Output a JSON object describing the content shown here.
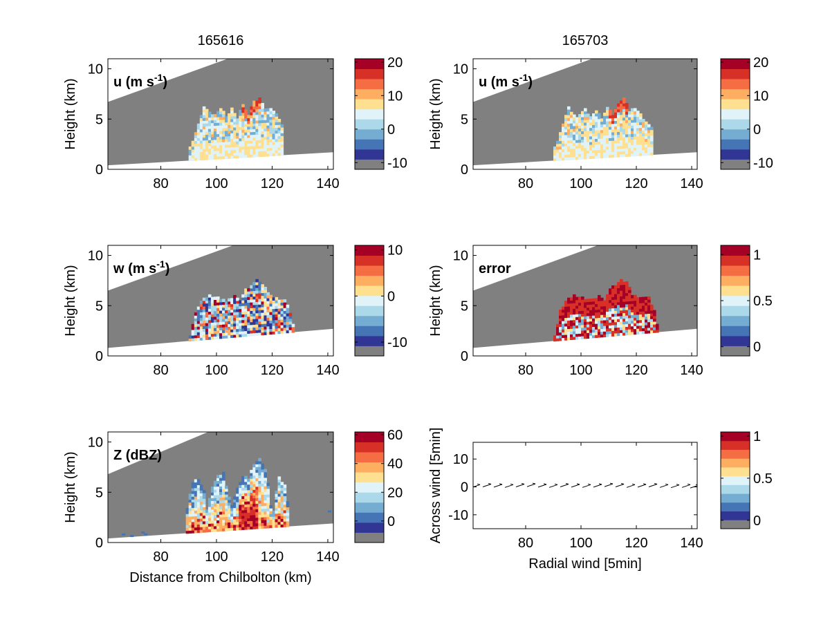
{
  "figure": {
    "col_titles": [
      "165616",
      "165703"
    ]
  },
  "palette": {
    "gray": "#808080",
    "colorbar": [
      "#808080",
      "#313695",
      "#4575b4",
      "#74add1",
      "#abd9e9",
      "#e0f3f8",
      "#fee090",
      "#fdae61",
      "#f46d43",
      "#d73027",
      "#a50026"
    ]
  },
  "chart_data": [
    {
      "type": "heatmap",
      "panel": "u",
      "title": "165616",
      "inlabel": {
        "main": "u (m s",
        "sup": "-1",
        "close": ")"
      },
      "xlabel": "",
      "ylabel": "Height (km)",
      "xlim": [
        61,
        142
      ],
      "ylim": [
        0,
        11
      ],
      "xticks": [
        80,
        100,
        120,
        140
      ],
      "yticks": [
        0,
        5,
        10
      ],
      "gray_top": [
        [
          61,
          6.7
        ],
        [
          104,
          11
        ]
      ],
      "gray_bottom": [
        [
          61,
          0.4
        ],
        [
          142,
          1.7
        ]
      ],
      "echo_top": [
        [
          90,
          2.0
        ],
        [
          93,
          4.5
        ],
        [
          95,
          6.1
        ],
        [
          98,
          5.2
        ],
        [
          101,
          6.0
        ],
        [
          103,
          5.1
        ],
        [
          105,
          5.9
        ],
        [
          107,
          5.0
        ],
        [
          109,
          6.3
        ],
        [
          111,
          5.4
        ],
        [
          113,
          6.6
        ],
        [
          115,
          7.1
        ],
        [
          117,
          5.8
        ],
        [
          119,
          6.0
        ],
        [
          121,
          5.3
        ],
        [
          123,
          4.2
        ],
        [
          124,
          2.1
        ]
      ],
      "colorbar": {
        "ticks": [
          20,
          10,
          0,
          -10
        ],
        "range": [
          -12,
          21
        ]
      }
    },
    {
      "type": "heatmap",
      "panel": "w",
      "title": "",
      "inlabel": {
        "main": "w (m s",
        "sup": "-1",
        "close": ")"
      },
      "xlabel": "",
      "ylabel": "Height (km)",
      "xlim": [
        61,
        142
      ],
      "ylim": [
        0,
        11
      ],
      "xticks": [
        80,
        100,
        120,
        140
      ],
      "yticks": [
        0,
        5,
        10
      ],
      "gray_top": [
        [
          61,
          6.5
        ],
        [
          106,
          11
        ]
      ],
      "gray_bottom": [
        [
          61,
          0.8
        ],
        [
          142,
          2.7
        ]
      ],
      "echo_top": [
        [
          90,
          1.8
        ],
        [
          92,
          4.3
        ],
        [
          94,
          5.4
        ],
        [
          97,
          5.9
        ],
        [
          100,
          5.7
        ],
        [
          103,
          5.4
        ],
        [
          106,
          5.8
        ],
        [
          108,
          5.4
        ],
        [
          110,
          6.5
        ],
        [
          112,
          6.9
        ],
        [
          114,
          7.4
        ],
        [
          116,
          7.1
        ],
        [
          118,
          6.1
        ],
        [
          120,
          5.8
        ],
        [
          122,
          5.5
        ],
        [
          124,
          5.6
        ],
        [
          126,
          4.2
        ],
        [
          127,
          3.0
        ],
        [
          128,
          2.6
        ]
      ],
      "colorbar": {
        "ticks": [
          10,
          0,
          -10
        ],
        "range": [
          -13,
          11
        ]
      }
    },
    {
      "type": "heatmap",
      "panel": "Z",
      "title": "",
      "inlabel": {
        "main": "Z (dBZ)",
        "sup": "",
        "close": ""
      },
      "xlabel": "Distance from Chilbolton (km)",
      "ylabel": "Height (km)",
      "xlim": [
        61,
        142
      ],
      "ylim": [
        0,
        11
      ],
      "xticks": [
        80,
        100,
        120,
        140
      ],
      "yticks": [
        0,
        5,
        10
      ],
      "gray_top": [
        [
          61,
          6.8
        ],
        [
          97,
          11
        ]
      ],
      "gray_bottom": [
        [
          61,
          0.4
        ],
        [
          142,
          1.9
        ]
      ],
      "echo_top": [
        [
          89,
          3.4
        ],
        [
          91,
          5.8
        ],
        [
          93,
          6.3
        ],
        [
          95,
          5.2
        ],
        [
          96,
          3.2
        ],
        [
          98,
          5.3
        ],
        [
          100,
          6.6
        ],
        [
          102,
          6.8
        ],
        [
          104,
          4.3
        ],
        [
          105,
          3.5
        ],
        [
          107,
          5.4
        ],
        [
          109,
          6.6
        ],
        [
          111,
          6.1
        ],
        [
          113,
          7.8
        ],
        [
          115,
          8.4
        ],
        [
          117,
          7.1
        ],
        [
          118,
          5.9
        ],
        [
          119,
          3.6
        ],
        [
          120,
          2.9
        ],
        [
          121,
          5.0
        ],
        [
          122,
          6.3
        ],
        [
          124,
          5.6
        ],
        [
          126,
          2.6
        ]
      ],
      "colorbar": {
        "ticks": [
          60,
          40,
          20,
          0
        ],
        "range": [
          -15,
          62
        ]
      }
    },
    {
      "type": "heatmap",
      "panel": "u2",
      "title": "165703",
      "inlabel": {
        "main": "u (m s",
        "sup": "-1",
        "close": ")"
      },
      "xlabel": "",
      "ylabel": "Height (km)",
      "xlim": [
        61,
        142
      ],
      "ylim": [
        0,
        11
      ],
      "xticks": [
        80,
        100,
        120,
        140
      ],
      "yticks": [
        0,
        5,
        10
      ],
      "gray_top": [
        [
          61,
          6.7
        ],
        [
          104,
          11
        ]
      ],
      "gray_bottom": [
        [
          61,
          0.4
        ],
        [
          142,
          1.7
        ]
      ],
      "echo_top": [
        [
          90,
          2.0
        ],
        [
          93,
          4.4
        ],
        [
          95,
          6.0
        ],
        [
          98,
          5.0
        ],
        [
          101,
          5.9
        ],
        [
          103,
          5.0
        ],
        [
          105,
          5.8
        ],
        [
          107,
          4.9
        ],
        [
          109,
          6.2
        ],
        [
          111,
          5.3
        ],
        [
          113,
          6.5
        ],
        [
          115,
          7.0
        ],
        [
          117,
          5.7
        ],
        [
          119,
          6.0
        ],
        [
          121,
          5.4
        ],
        [
          123,
          4.6
        ],
        [
          125,
          4.0
        ],
        [
          126,
          2.1
        ]
      ],
      "colorbar": {
        "ticks": [
          20,
          10,
          0,
          -10
        ],
        "range": [
          -12,
          21
        ]
      }
    },
    {
      "type": "heatmap",
      "panel": "error",
      "title": "",
      "inlabel": {
        "main": "error",
        "sup": "",
        "close": ""
      },
      "xlabel": "",
      "ylabel": "Height (km)",
      "xlim": [
        61,
        142
      ],
      "ylim": [
        0,
        11
      ],
      "xticks": [
        80,
        100,
        120,
        140
      ],
      "yticks": [
        0,
        5,
        10
      ],
      "gray_top": [
        [
          61,
          6.5
        ],
        [
          106,
          11
        ]
      ],
      "gray_bottom": [
        [
          61,
          0.8
        ],
        [
          142,
          2.7
        ]
      ],
      "echo_top": [
        [
          90,
          1.8
        ],
        [
          92,
          4.4
        ],
        [
          94,
          5.4
        ],
        [
          97,
          5.9
        ],
        [
          100,
          5.7
        ],
        [
          103,
          5.5
        ],
        [
          106,
          5.8
        ],
        [
          108,
          5.4
        ],
        [
          110,
          6.6
        ],
        [
          112,
          7.0
        ],
        [
          114,
          7.5
        ],
        [
          116,
          7.2
        ],
        [
          118,
          6.0
        ],
        [
          120,
          5.7
        ],
        [
          122,
          5.6
        ],
        [
          124,
          5.8
        ],
        [
          126,
          4.3
        ],
        [
          127,
          3.0
        ],
        [
          128,
          2.6
        ]
      ],
      "colorbar": {
        "ticks": [
          1,
          0.5,
          0
        ],
        "range": [
          -0.1,
          1.1
        ]
      }
    },
    {
      "type": "scatter",
      "panel": "wind",
      "title": "",
      "inlabel": {
        "main": "",
        "sup": "",
        "close": ""
      },
      "xlabel": "Radial wind [5min]",
      "ylabel": "Across wind [5min]",
      "xlim": [
        61,
        142
      ],
      "ylim": [
        -15,
        16
      ],
      "xticks": [
        80,
        100,
        120,
        140
      ],
      "yticks": [
        -10,
        0,
        10
      ],
      "arrows_x": [
        62,
        66,
        70,
        74,
        78,
        82,
        86,
        90,
        94,
        98,
        102,
        106,
        110,
        114,
        118,
        122,
        126,
        130,
        134,
        138,
        141
      ],
      "arrows_y": [
        0.3,
        0.5,
        0.4,
        0.3,
        0.5,
        0.6,
        0.4,
        0.3,
        0.5,
        0.4,
        0.3,
        0.4,
        0.6,
        0.5,
        0.3,
        0.4,
        0.5,
        0.3,
        0.2,
        0.3,
        0.1
      ],
      "colorbar": {
        "ticks": [
          1,
          0.5,
          0
        ],
        "range": [
          -0.1,
          1.05
        ]
      }
    }
  ]
}
